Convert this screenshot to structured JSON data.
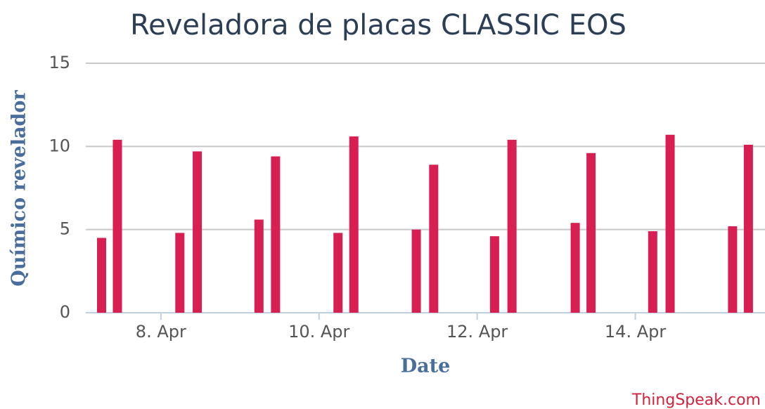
{
  "chart_data": {
    "type": "bar",
    "title": "Reveladora de placas CLASSIC EOS",
    "x_label": "Date",
    "y_label": "Químico revelador",
    "credit": "ThingSpeak.com",
    "color": "#d81f52",
    "x": [
      7.25,
      7.45,
      8.24,
      8.46,
      9.24,
      9.45,
      10.24,
      10.44,
      11.23,
      11.45,
      12.22,
      12.44,
      13.24,
      13.44,
      14.22,
      14.44,
      15.23,
      15.43
    ],
    "values": [
      4.5,
      10.4,
      4.8,
      9.7,
      5.6,
      9.4,
      4.8,
      10.6,
      5.0,
      8.9,
      4.6,
      10.4,
      5.4,
      9.6,
      4.9,
      10.7,
      5.2,
      10.1
    ],
    "xlim": [
      7.05,
      15.64
    ],
    "xticks": [
      {
        "value": 8,
        "label": "8. Apr"
      },
      {
        "value": 10,
        "label": "10. Apr"
      },
      {
        "value": 12,
        "label": "12. Apr"
      },
      {
        "value": 14,
        "label": "14. Apr"
      }
    ],
    "ylim": [
      0,
      15
    ],
    "yticks": [
      0,
      5,
      10,
      15
    ],
    "grid": true
  }
}
